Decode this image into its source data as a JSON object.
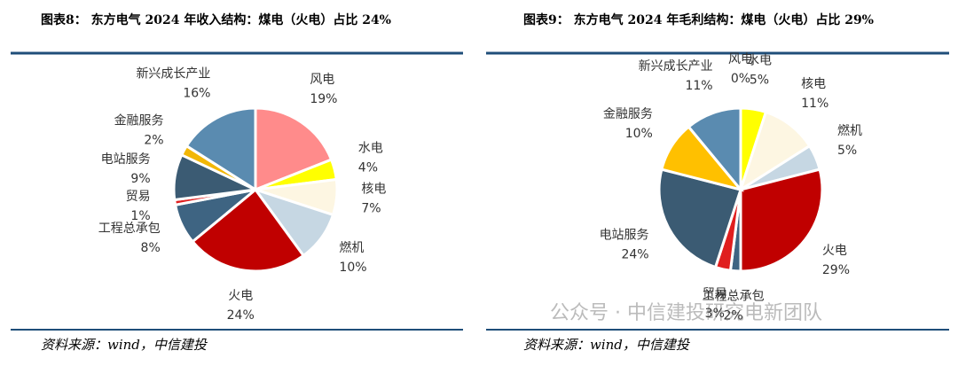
{
  "chart_data": [
    {
      "type": "pie",
      "title": "图表8： 东方电气 2024 年收入结构：煤电（火电）占比 24%",
      "categories": [
        "风电",
        "水电",
        "核电",
        "燃机",
        "火电",
        "工程总承包",
        "贸易",
        "电站服务",
        "金融服务",
        "新兴成长产业"
      ],
      "values": [
        19,
        4,
        7,
        10,
        24,
        8,
        1,
        9,
        2,
        16
      ],
      "value_labels": [
        "19%",
        "4%",
        "7%",
        "10%",
        "24%",
        "8%",
        "1%",
        "9%",
        "2%",
        "16%"
      ],
      "colors": [
        "#ff8b8b",
        "#ffff00",
        "#fdf6e2",
        "#c6d7e3",
        "#c00000",
        "#3e6482",
        "#e01e1e",
        "#3b5b73",
        "#f2b705",
        "#5a8bb0"
      ],
      "source": "资料来源：wind，中信建投"
    },
    {
      "type": "pie",
      "title": "图表9： 东方电气 2024 年毛利结构：煤电（火电）占比 29%",
      "categories": [
        "风电",
        "水电",
        "核电",
        "燃机",
        "火电",
        "工程总承包",
        "贸易",
        "电站服务",
        "金融服务",
        "新兴成长产业"
      ],
      "values": [
        0,
        5,
        11,
        5,
        29,
        2,
        3,
        24,
        10,
        11
      ],
      "value_labels": [
        "0%",
        "5%",
        "11%",
        "5%",
        "29%",
        "2%",
        "3%",
        "24%",
        "10%",
        "11%"
      ],
      "colors": [
        "#ff8b8b",
        "#ffff00",
        "#fdf6e2",
        "#c6d7e3",
        "#c00000",
        "#3e6482",
        "#e01e1e",
        "#3b5b73",
        "#ffc000",
        "#5a8bb0"
      ],
      "source": "资料来源：wind，中信建投"
    }
  ],
  "watermark": "公众号 · 中信建投研究电新团队"
}
